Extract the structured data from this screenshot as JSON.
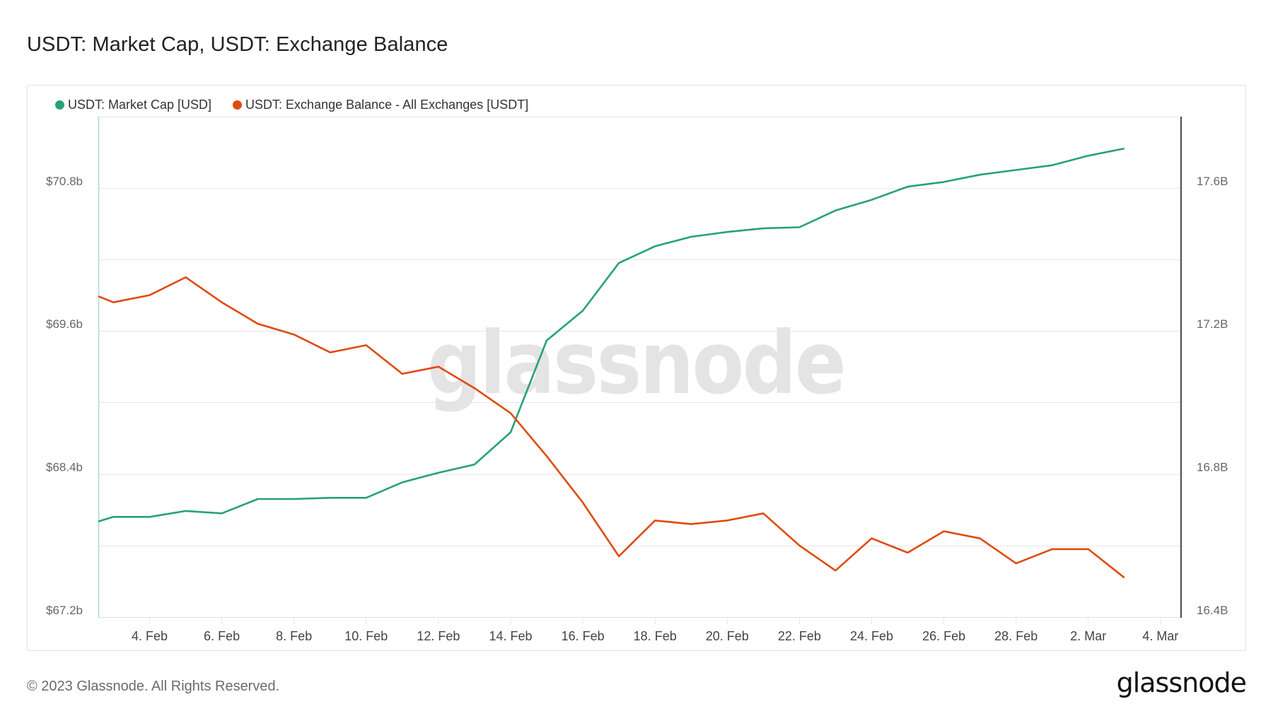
{
  "header": {
    "title": "USDT: Market Cap, USDT: Exchange Balance"
  },
  "legend": [
    {
      "label": "USDT: Market Cap [USD]",
      "color": "#26a17b"
    },
    {
      "label": "USDT: Exchange Balance - All Exchanges [USDT]",
      "color": "#e04a0e"
    }
  ],
  "watermark": "glassnode",
  "footer": {
    "copyright": "© 2023 Glassnode. All Rights Reserved.",
    "logo": "glassnode"
  },
  "colors": {
    "market_cap": "#26a17b",
    "exchange_balance": "#e04a0e",
    "left_axis_line": "#a6dccb",
    "right_axis_line": "#111111",
    "grid": "#e6e6e6"
  },
  "chart_data": {
    "type": "line",
    "title": "USDT: Market Cap, USDT: Exchange Balance",
    "xlabel": "",
    "x_tick_labels": [
      "4. Feb",
      "6. Feb",
      "8. Feb",
      "10. Feb",
      "12. Feb",
      "14. Feb",
      "16. Feb",
      "18. Feb",
      "20. Feb",
      "22. Feb",
      "24. Feb",
      "26. Feb",
      "28. Feb",
      "2. Mar",
      "4. Mar"
    ],
    "y_left": {
      "label": "USDT: Market Cap [USD]",
      "tick_labels": [
        "$67.2b",
        "$68.4b",
        "$69.6b",
        "$70.8b"
      ],
      "ticks": [
        67.2,
        68.4,
        69.6,
        70.8
      ],
      "range": [
        67.2,
        71.9
      ]
    },
    "y_right": {
      "label": "USDT: Exchange Balance [USDT]",
      "tick_labels": [
        "16.4B",
        "16.8B",
        "17.2B",
        "17.6B"
      ],
      "ticks": [
        16.4,
        16.8,
        17.2,
        17.6
      ],
      "range": [
        16.4,
        17.8
      ]
    },
    "grid": true,
    "legend_position": "top-left",
    "x": [
      "2 Feb",
      "3 Feb",
      "4 Feb",
      "5 Feb",
      "6 Feb",
      "7 Feb",
      "8 Feb",
      "9 Feb",
      "10 Feb",
      "11 Feb",
      "12 Feb",
      "13 Feb",
      "14 Feb",
      "15 Feb",
      "16 Feb",
      "17 Feb",
      "18 Feb",
      "19 Feb",
      "20 Feb",
      "21 Feb",
      "22 Feb",
      "23 Feb",
      "24 Feb",
      "25 Feb",
      "26 Feb",
      "27 Feb",
      "28 Feb",
      "1 Mar",
      "2 Mar",
      "3 Mar"
    ],
    "series": [
      {
        "name": "USDT: Market Cap [USD]",
        "axis": "left",
        "unit": "billion USD",
        "values": [
          67.95,
          68.04,
          68.04,
          68.09,
          68.07,
          68.19,
          68.19,
          68.2,
          68.2,
          68.33,
          68.41,
          68.48,
          68.75,
          69.52,
          69.77,
          70.17,
          70.31,
          70.39,
          70.43,
          70.46,
          70.47,
          70.61,
          70.7,
          70.81,
          70.85,
          70.91,
          70.95,
          70.99,
          71.07,
          71.13
        ]
      },
      {
        "name": "USDT: Exchange Balance - All Exchanges [USDT]",
        "axis": "right",
        "unit": "billion USDT",
        "values": [
          17.32,
          17.28,
          17.3,
          17.35,
          17.28,
          17.22,
          17.19,
          17.14,
          17.16,
          17.08,
          17.1,
          17.04,
          16.97,
          16.85,
          16.72,
          16.57,
          16.67,
          16.66,
          16.67,
          16.69,
          16.6,
          16.53,
          16.62,
          16.58,
          16.64,
          16.62,
          16.55,
          16.59,
          16.59,
          16.51
        ]
      }
    ]
  }
}
